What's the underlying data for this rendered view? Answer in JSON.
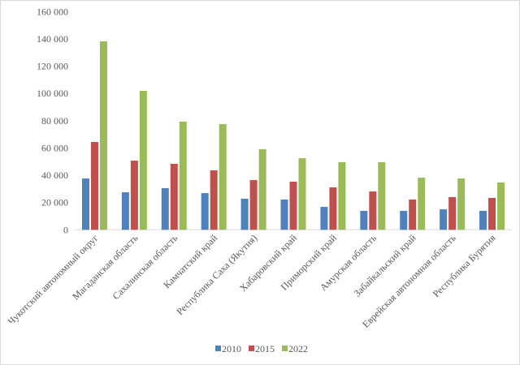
{
  "chart_data": {
    "type": "bar",
    "title": "",
    "xlabel": "",
    "ylabel": "",
    "ylim": [
      0,
      160000
    ],
    "yticks": [
      0,
      20000,
      40000,
      60000,
      80000,
      100000,
      120000,
      140000,
      160000
    ],
    "ytick_labels": [
      "0",
      "20 000",
      "40 000",
      "60 000",
      "80 000",
      "100 000",
      "120 000",
      "140 000",
      "160 000"
    ],
    "grid": false,
    "legend_position": "bottom",
    "categories": [
      "Чукотский автономный округ",
      "Магаданская область",
      "Сахалинская область",
      "Камчатский край",
      "Республика Саха (Якутия)",
      "Хабаровский край",
      "Приморский край",
      "Амурская область",
      "Забайкальский край",
      "Еврейская автономная область",
      "Республика Бурятия"
    ],
    "series": [
      {
        "name": "2010",
        "color": "#4f81bd",
        "values": [
          37600,
          27500,
          30500,
          26900,
          22800,
          22200,
          16800,
          13900,
          13900,
          15000,
          13900
        ]
      },
      {
        "name": "2015",
        "color": "#c0504d",
        "values": [
          64400,
          50700,
          48400,
          43600,
          36500,
          35300,
          31100,
          28100,
          22200,
          24000,
          23400
        ]
      },
      {
        "name": "2022",
        "color": "#9bbb59",
        "values": [
          138200,
          101900,
          79300,
          77500,
          59100,
          52500,
          49600,
          49600,
          38200,
          37700,
          34700
        ]
      }
    ]
  }
}
